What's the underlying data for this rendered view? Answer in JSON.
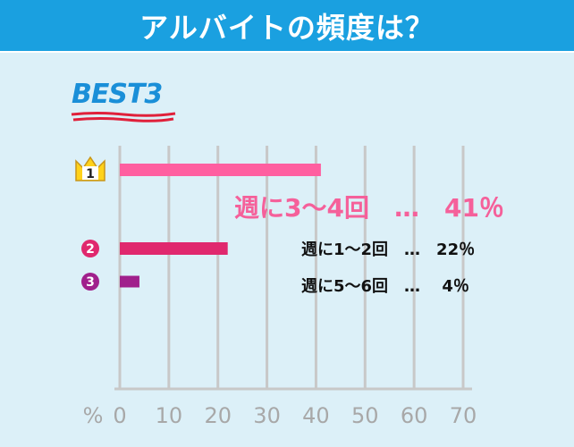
{
  "header": {
    "title": "アルバイトの頻度は？"
  },
  "badge": {
    "text": "BEST3"
  },
  "ranks": [
    {
      "rank": "1",
      "label": "週に3～4回　…　41％",
      "color": "#ff5fa0",
      "crown": true
    },
    {
      "rank": "2",
      "label": "週に1～2回　…　22％",
      "color": "#e0286e",
      "crown": false
    },
    {
      "rank": "3",
      "label": "週に5～6回　…　 4％",
      "color": "#a0208c",
      "crown": false
    }
  ],
  "chart_data": {
    "type": "bar",
    "orientation": "horizontal",
    "title": "アルバイトの頻度は？",
    "categories": [
      "週に3～4回",
      "週に1～2回",
      "週に5～6回"
    ],
    "values": [
      41,
      22,
      4
    ],
    "xlabel": "%",
    "xlim": [
      0,
      70
    ],
    "xticks": [
      "0",
      "10",
      "20",
      "30",
      "40",
      "50",
      "60",
      "70"
    ],
    "grid": true
  }
}
